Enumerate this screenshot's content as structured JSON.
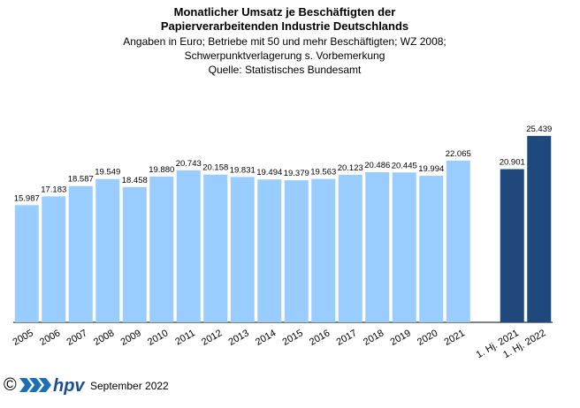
{
  "chart_data": {
    "type": "bar",
    "title": [
      "Monatlicher Umsatz je Beschäftigten der",
      "Papierverarbeitenden Industrie Deutschlands"
    ],
    "subtitle": [
      "Angaben  in Euro; Betriebe mit 50 und mehr Beschäftigten; WZ 2008;",
      "Schwerpunktverlagerung  s. Vorbemerkung",
      "Quelle: Statistisches Bundesamt"
    ],
    "categories": [
      "2005",
      "2006",
      "2007",
      "2008",
      "2009",
      "2010",
      "2011",
      "2012",
      "2013",
      "2014",
      "2015",
      "2016",
      "2017",
      "2018",
      "2019",
      "2020",
      "2021",
      null,
      "1. Hj. 2021",
      "1. Hj. 2022"
    ],
    "values": [
      15987,
      17183,
      18587,
      19549,
      18458,
      19880,
      20743,
      20158,
      19831,
      19494,
      19379,
      19563,
      20123,
      20486,
      20445,
      19994,
      22065,
      null,
      20901,
      25439
    ],
    "value_labels": [
      "15.987",
      "17.183",
      "18.587",
      "19.549",
      "18.458",
      "19.880",
      "20.743",
      "20.158",
      "19.831",
      "19.494",
      "19.379",
      "19.563",
      "20.123",
      "20.486",
      "20.445",
      "19.994",
      "22.065",
      null,
      "20.901",
      "25.439"
    ],
    "colors": [
      "#99ccff",
      "#99ccff",
      "#99ccff",
      "#99ccff",
      "#99ccff",
      "#99ccff",
      "#99ccff",
      "#99ccff",
      "#99ccff",
      "#99ccff",
      "#99ccff",
      "#99ccff",
      "#99ccff",
      "#99ccff",
      "#99ccff",
      "#99ccff",
      "#99ccff",
      null,
      "#1f497d",
      "#1f497d"
    ],
    "ylim": [
      0,
      30000
    ]
  },
  "footer": {
    "copyright": "©",
    "logo": "hpv",
    "date": "September 2022"
  }
}
